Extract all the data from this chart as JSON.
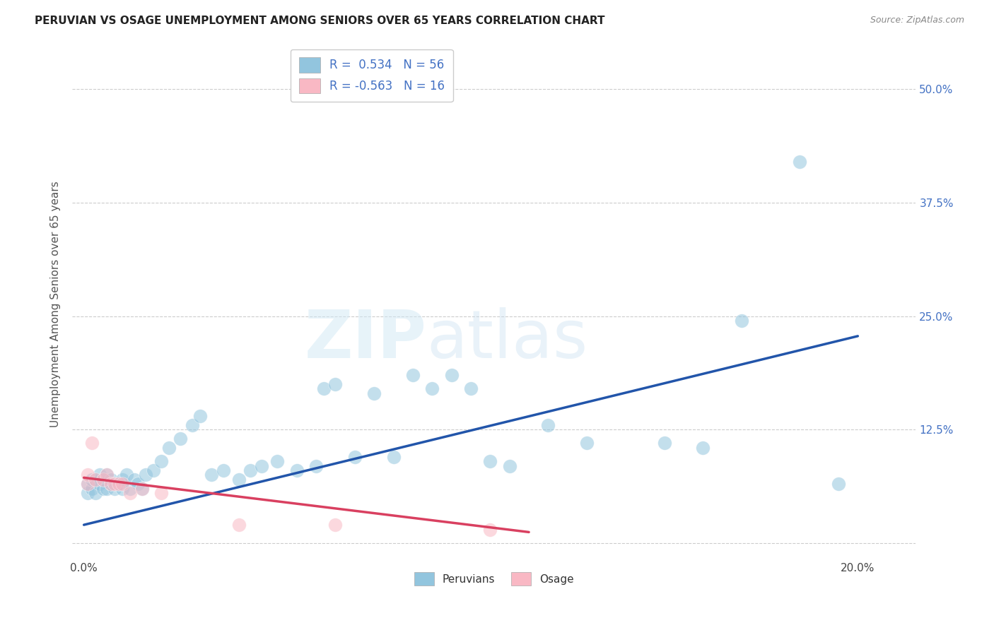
{
  "title": "PERUVIAN VS OSAGE UNEMPLOYMENT AMONG SENIORS OVER 65 YEARS CORRELATION CHART",
  "source": "Source: ZipAtlas.com",
  "ylabel": "Unemployment Among Seniors over 65 years",
  "x_ticks": [
    0.0,
    0.05,
    0.1,
    0.15,
    0.2
  ],
  "y_ticks": [
    0.0,
    0.125,
    0.25,
    0.375,
    0.5
  ],
  "y_tick_labels": [
    "",
    "12.5%",
    "25.0%",
    "37.5%",
    "50.0%"
  ],
  "xlim": [
    -0.003,
    0.215
  ],
  "ylim": [
    -0.018,
    0.545
  ],
  "blue_R": 0.534,
  "blue_N": 56,
  "pink_R": -0.563,
  "pink_N": 16,
  "blue_color": "#92c5de",
  "pink_color": "#f9b8c4",
  "blue_line_color": "#2255aa",
  "pink_line_color": "#d94060",
  "legend_label_blue": "Peruvians",
  "legend_label_pink": "Osage",
  "blue_scatter_x": [
    0.001,
    0.001,
    0.002,
    0.002,
    0.003,
    0.003,
    0.004,
    0.004,
    0.005,
    0.005,
    0.006,
    0.006,
    0.007,
    0.007,
    0.008,
    0.009,
    0.01,
    0.01,
    0.011,
    0.012,
    0.013,
    0.014,
    0.015,
    0.016,
    0.018,
    0.02,
    0.022,
    0.025,
    0.028,
    0.03,
    0.033,
    0.036,
    0.04,
    0.043,
    0.046,
    0.05,
    0.055,
    0.06,
    0.062,
    0.065,
    0.07,
    0.075,
    0.08,
    0.085,
    0.09,
    0.095,
    0.1,
    0.105,
    0.11,
    0.12,
    0.13,
    0.15,
    0.16,
    0.17,
    0.185,
    0.195
  ],
  "blue_scatter_y": [
    0.055,
    0.065,
    0.06,
    0.07,
    0.055,
    0.07,
    0.065,
    0.075,
    0.06,
    0.07,
    0.06,
    0.075,
    0.065,
    0.07,
    0.06,
    0.065,
    0.06,
    0.07,
    0.075,
    0.06,
    0.07,
    0.065,
    0.06,
    0.075,
    0.08,
    0.09,
    0.105,
    0.115,
    0.13,
    0.14,
    0.075,
    0.08,
    0.07,
    0.08,
    0.085,
    0.09,
    0.08,
    0.085,
    0.17,
    0.175,
    0.095,
    0.165,
    0.095,
    0.185,
    0.17,
    0.185,
    0.17,
    0.09,
    0.085,
    0.13,
    0.11,
    0.11,
    0.105,
    0.245,
    0.42,
    0.065
  ],
  "pink_scatter_x": [
    0.001,
    0.001,
    0.002,
    0.003,
    0.005,
    0.006,
    0.007,
    0.008,
    0.009,
    0.01,
    0.012,
    0.015,
    0.02,
    0.04,
    0.065,
    0.105
  ],
  "pink_scatter_y": [
    0.065,
    0.075,
    0.11,
    0.07,
    0.07,
    0.075,
    0.065,
    0.065,
    0.065,
    0.065,
    0.055,
    0.06,
    0.055,
    0.02,
    0.02,
    0.015
  ],
  "blue_line_x": [
    0.0,
    0.2
  ],
  "blue_line_y": [
    0.02,
    0.228
  ],
  "pink_line_x": [
    0.0,
    0.115
  ],
  "pink_line_y": [
    0.072,
    0.012
  ]
}
